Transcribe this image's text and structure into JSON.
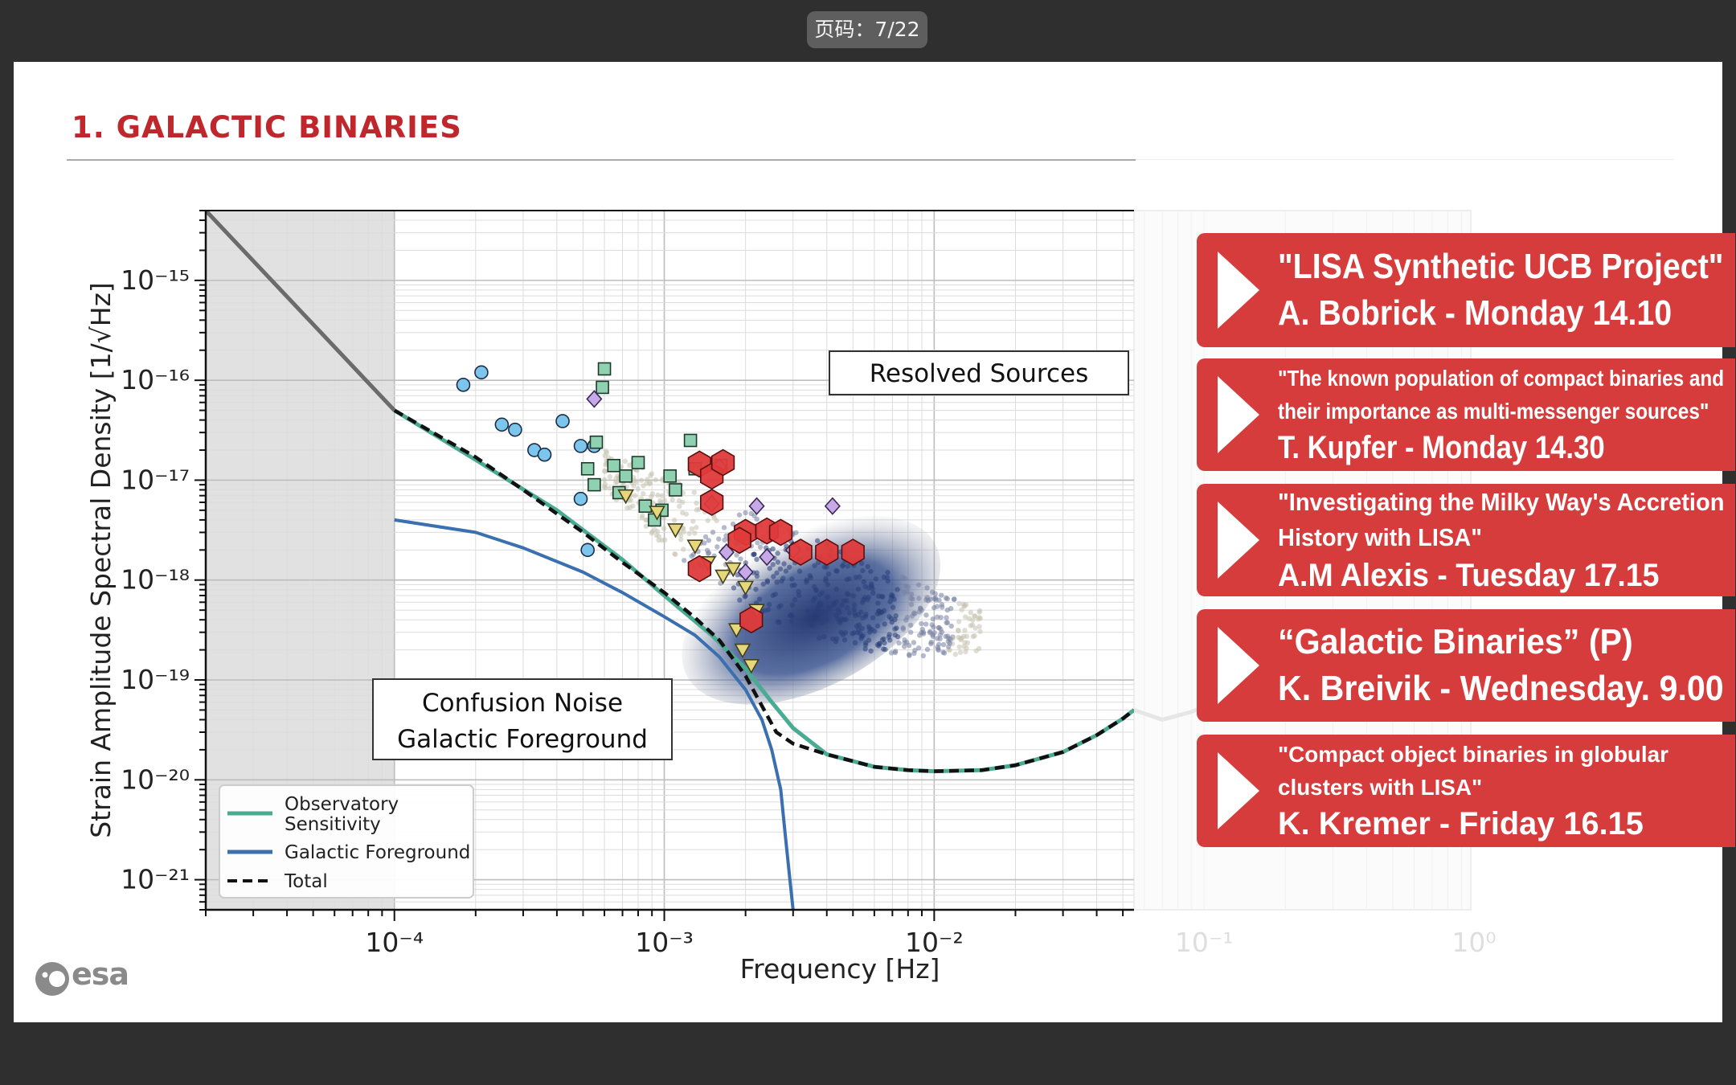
{
  "viewer": {
    "page_badge": "页码：7/22"
  },
  "slide": {
    "title": "1. GALACTIC BINARIES",
    "brand": "esa"
  },
  "colors": {
    "title_red": "#c0272d",
    "callout_red": "#d63c3c",
    "observatory": "#4aab93",
    "foreground": "#3a6fb0",
    "total": "#111111",
    "excluded_band": "#e1e1e1",
    "source_cloud_dark": "#1c2f6b",
    "source_cloud_light": "#c7c3b0",
    "marker_circle": "#7cc6ee",
    "marker_square": "#8fd1b0",
    "marker_diamond": "#c7a9e8",
    "marker_triangle": "#e6d77a",
    "marker_hexagon": "#df3a3a"
  },
  "chart_data": {
    "type": "line",
    "xlabel": "Frequency [Hz]",
    "ylabel": "Strain Amplitude Spectral Density [1/√Hz]",
    "xscale": "log",
    "yscale": "log",
    "xlim": [
      2e-05,
      1
    ],
    "ylim": [
      5e-22,
      5e-15
    ],
    "x_ticks": [
      "10⁻⁴",
      "10⁻³",
      "10⁻²",
      "10⁻¹",
      "10⁰"
    ],
    "y_ticks": [
      "10⁻¹⁵",
      "10⁻¹⁶",
      "10⁻¹⁷",
      "10⁻¹⁸",
      "10⁻¹⁹",
      "10⁻²⁰",
      "10⁻²¹"
    ],
    "grid": true,
    "legend_position": "lower-left",
    "shaded_region_x": [
      2e-05,
      0.0001
    ],
    "series": [
      {
        "name": "Observatory Sensitivity",
        "style": "solid",
        "x": [
          0.0001,
          0.0002,
          0.0004,
          0.0007,
          0.001,
          0.0015,
          0.002,
          0.0025,
          0.003,
          0.004,
          0.006,
          0.008,
          0.01,
          0.015,
          0.02,
          0.03,
          0.04,
          0.05,
          0.055
        ],
        "y": [
          5e-17,
          1.6e-17,
          5e-18,
          1.6e-18,
          7e-19,
          2.8e-19,
          1.3e-19,
          6e-20,
          3.3e-20,
          1.8e-20,
          1.35e-20,
          1.25e-20,
          1.22e-20,
          1.25e-20,
          1.4e-20,
          1.9e-20,
          2.8e-20,
          4.1e-20,
          5e-20
        ]
      },
      {
        "name": "Galactic Foreground",
        "style": "solid",
        "x": [
          0.0001,
          0.0002,
          0.0003,
          0.0005,
          0.0007,
          0.001,
          0.0013,
          0.0016,
          0.002,
          0.0023,
          0.0025,
          0.0027,
          0.0028,
          0.0029,
          0.003
        ],
        "y": [
          4e-18,
          3e-18,
          2.1e-18,
          1.2e-18,
          7.5e-19,
          4.3e-19,
          2.8e-19,
          1.7e-19,
          8e-20,
          4e-20,
          2e-20,
          8e-21,
          3e-21,
          1.2e-21,
          5e-22
        ]
      },
      {
        "name": "Total",
        "style": "dashed",
        "x": [
          0.0001,
          0.0002,
          0.0003,
          0.0005,
          0.0007,
          0.001,
          0.0013,
          0.0016,
          0.002,
          0.0023,
          0.0026,
          0.003,
          0.004,
          0.006,
          0.008,
          0.01,
          0.015,
          0.02,
          0.03,
          0.04,
          0.05,
          0.055
        ],
        "y": [
          5e-17,
          1.7e-17,
          8e-18,
          3e-18,
          1.5e-18,
          7.5e-19,
          4.2e-19,
          2.5e-19,
          1.1e-19,
          5.5e-20,
          3e-20,
          2.3e-20,
          1.8e-20,
          1.35e-20,
          1.25e-20,
          1.22e-20,
          1.25e-20,
          1.4e-20,
          1.9e-20,
          2.8e-20,
          4.1e-20,
          5e-20
        ]
      },
      {
        "name": "",
        "style": "extrapolation",
        "x": [
          2e-05,
          0.0001
        ],
        "y": [
          5e-15,
          5e-17
        ]
      }
    ],
    "annotations": [
      "Resolved Sources",
      "Confusion Noise\nGalactic Foreground"
    ],
    "resolved_sources": {
      "circle": {
        "x": [
          0.00018,
          0.00021,
          0.00025,
          0.00028,
          0.00033,
          0.00036,
          0.00042,
          0.00049,
          0.00055,
          0.00049,
          0.00052
        ],
        "y": [
          9e-17,
          1.2e-16,
          3.6e-17,
          3.2e-17,
          2e-17,
          1.8e-17,
          3.9e-17,
          2.2e-17,
          2.2e-17,
          6.5e-18,
          2e-18
        ]
      },
      "square": {
        "x": [
          0.0006,
          0.00059,
          0.00056,
          0.00052,
          0.00055,
          0.00065,
          0.00072,
          0.00085,
          0.00098,
          0.00105,
          0.00125,
          0.0013,
          0.00162,
          0.0011,
          0.0008,
          0.00092,
          0.00068
        ],
        "y": [
          1.3e-16,
          8.5e-17,
          2.4e-17,
          1.3e-17,
          9e-18,
          1.4e-17,
          1.1e-17,
          5.5e-18,
          5e-18,
          1.1e-17,
          2.5e-17,
          1.3e-17,
          1.4e-17,
          8e-18,
          1.5e-17,
          4e-18,
          7.5e-18
        ]
      },
      "diamond": {
        "x": [
          0.00055,
          0.0016,
          0.0015,
          0.0017,
          0.002,
          0.003,
          0.0042,
          0.0024,
          0.0022
        ],
        "y": [
          6.5e-17,
          1.35e-17,
          5.8e-18,
          1.9e-18,
          1.2e-18,
          2e-18,
          5.5e-18,
          1.7e-18,
          5.5e-18
        ]
      },
      "triangle": {
        "x": [
          0.00072,
          0.00094,
          0.0011,
          0.0013,
          0.00145,
          0.00165,
          0.0018,
          0.002,
          0.0022,
          0.00195,
          0.0021,
          0.00185
        ],
        "y": [
          7e-18,
          4.8e-18,
          3.2e-18,
          2.2e-18,
          1.5e-18,
          1.1e-18,
          1.3e-18,
          8.5e-19,
          5e-19,
          2e-19,
          1.4e-19,
          3.2e-19
        ]
      },
      "hexagon": {
        "x": [
          0.00135,
          0.0015,
          0.00165,
          0.002,
          0.0024,
          0.0027,
          0.0032,
          0.004,
          0.005,
          0.0019,
          0.0015,
          0.0021,
          0.00135
        ],
        "y": [
          1.45e-17,
          1.1e-17,
          1.5e-17,
          3e-18,
          3.1e-18,
          3e-18,
          1.9e-18,
          1.9e-18,
          1.9e-18,
          2.5e-18,
          6e-18,
          4e-19,
          1.3e-18
        ]
      }
    }
  },
  "legend": {
    "observatory_line1": "Observatory",
    "observatory_line2": "Sensitivity",
    "foreground": "Galactic Foreground",
    "total": "Total"
  },
  "callouts": [
    {
      "lines": [
        "\"LISA Synthetic UCB Project\"",
        "A. Bobrick - Monday 14.10"
      ]
    },
    {
      "lines": [
        "\"The known population of compact binaries and",
        "their importance as multi-messenger sources\"",
        "T. Kupfer - Monday 14.30"
      ]
    },
    {
      "lines": [
        "\"Investigating the Milky Way's Accretion",
        "History with LISA\"",
        "A.M Alexis - Tuesday 17.15"
      ]
    },
    {
      "lines": [
        "“Galactic Binaries” (P)",
        "K. Breivik - Wednesday. 9.00"
      ]
    },
    {
      "lines": [
        "\"Compact object binaries in globular",
        "clusters with LISA\"",
        "K. Kremer - Friday 16.15"
      ]
    }
  ]
}
